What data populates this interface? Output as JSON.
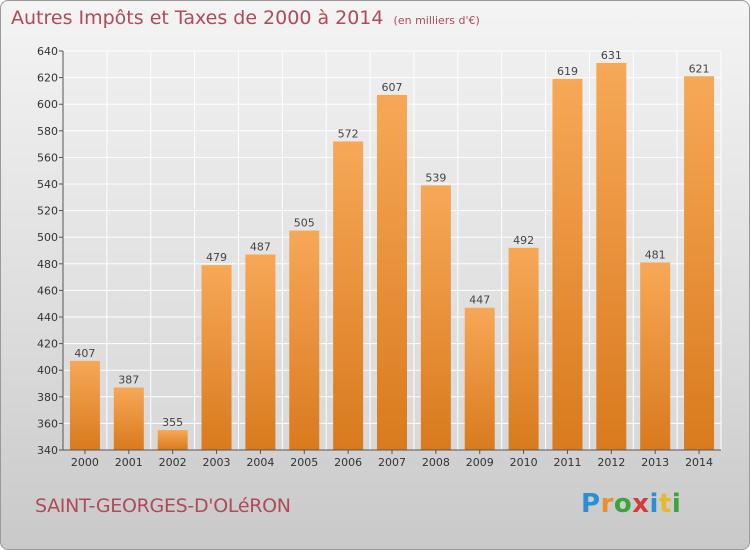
{
  "header": {
    "title": "Autres Impôts et Taxes de 2000 à 2014",
    "subtitle": "(en milliers d'€)"
  },
  "footer": {
    "commune": "SAINT-GEORGES-D'OLéRON",
    "brand": [
      "P",
      "r",
      "o",
      "x",
      "i",
      "t",
      "i"
    ]
  },
  "colors": {
    "bar_top": "#f7a857",
    "bar_bottom": "#d97a1d",
    "title": "#b04a5a",
    "grid": "#ffffff"
  },
  "chart_data": {
    "type": "bar",
    "title": "Autres Impôts et Taxes de 2000 à 2014",
    "subtitle": "(en milliers d'€)",
    "categories": [
      "2000",
      "2001",
      "2002",
      "2003",
      "2004",
      "2005",
      "2006",
      "2007",
      "2008",
      "2009",
      "2010",
      "2011",
      "2012",
      "2013",
      "2014"
    ],
    "values": [
      407,
      387,
      355,
      479,
      487,
      505,
      572,
      607,
      539,
      447,
      492,
      619,
      631,
      481,
      621
    ],
    "ylim": [
      340,
      640
    ],
    "yticks": [
      340,
      360,
      380,
      400,
      420,
      440,
      460,
      480,
      500,
      520,
      540,
      560,
      580,
      600,
      620,
      640
    ],
    "xlabel": "",
    "ylabel": "",
    "grid": true
  }
}
